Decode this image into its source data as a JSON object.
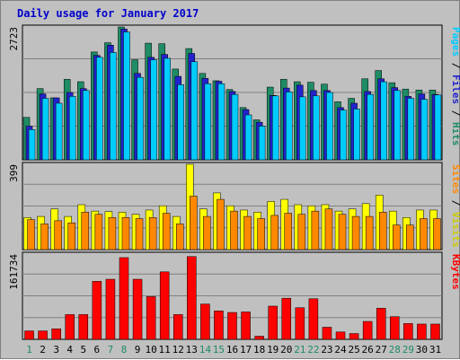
{
  "chart_data": [
    {
      "type": "bar",
      "title": "Daily usage for January 2017",
      "categories": [
        "1",
        "2",
        "3",
        "4",
        "5",
        "6",
        "7",
        "8",
        "9",
        "10",
        "11",
        "12",
        "13",
        "14",
        "15",
        "16",
        "17",
        "18",
        "19",
        "20",
        "21",
        "22",
        "23",
        "24",
        "25",
        "26",
        "27",
        "28",
        "29",
        "30",
        "31"
      ],
      "weekend_days": [
        "1",
        "7",
        "8",
        "14",
        "15",
        "21",
        "22",
        "28",
        "29"
      ],
      "ymax_label": "2723",
      "ylim": [
        0,
        2723
      ],
      "series": [
        {
          "name": "Hits",
          "color": "#1e8c64",
          "values": [
            870,
            1460,
            1270,
            1650,
            1600,
            2210,
            2400,
            2723,
            2050,
            2390,
            2380,
            1860,
            2280,
            1770,
            1620,
            1440,
            1070,
            820,
            1490,
            1650,
            1600,
            1590,
            1550,
            1190,
            1260,
            1660,
            1830,
            1580,
            1450,
            1430,
            1430
          ]
        },
        {
          "name": "Files",
          "color": "#2222cc",
          "values": [
            690,
            1350,
            1270,
            1380,
            1460,
            2140,
            2350,
            2680,
            1770,
            2100,
            2160,
            1710,
            2180,
            1670,
            1610,
            1400,
            1030,
            770,
            1320,
            1470,
            1530,
            1420,
            1420,
            1070,
            1160,
            1400,
            1660,
            1480,
            1300,
            1350,
            1340
          ]
        },
        {
          "name": "Pages",
          "color": "#00ccff",
          "values": [
            620,
            1260,
            1160,
            1300,
            1420,
            2100,
            2200,
            2620,
            1690,
            2050,
            2080,
            1540,
            2010,
            1560,
            1560,
            1340,
            920,
            690,
            1310,
            1390,
            1290,
            1310,
            1380,
            1020,
            1040,
            1340,
            1600,
            1420,
            1260,
            1240,
            1330
          ]
        }
      ],
      "right_label": [
        {
          "text": "Pages",
          "color": "#00ccff"
        },
        {
          "text": " / ",
          "color": "#000000"
        },
        {
          "text": "Files",
          "color": "#2222cc"
        },
        {
          "text": " / ",
          "color": "#000000"
        },
        {
          "text": "Hits",
          "color": "#1e8c64"
        }
      ]
    },
    {
      "type": "bar",
      "ymax_label": "399",
      "ylim": [
        0,
        399
      ],
      "series": [
        {
          "name": "Visits",
          "color": "#ffff00",
          "values": [
            150,
            155,
            190,
            155,
            210,
            180,
            178,
            175,
            165,
            185,
            205,
            155,
            399,
            190,
            265,
            205,
            185,
            175,
            225,
            235,
            210,
            205,
            210,
            180,
            190,
            215,
            255,
            180,
            150,
            185,
            185
          ]
        },
        {
          "name": "Sites",
          "color": "#ff8800",
          "values": [
            140,
            120,
            135,
            125,
            175,
            165,
            150,
            150,
            145,
            150,
            170,
            120,
            250,
            155,
            235,
            180,
            155,
            145,
            160,
            170,
            165,
            180,
            190,
            165,
            155,
            155,
            175,
            115,
            115,
            145,
            145
          ]
        }
      ],
      "right_label": [
        {
          "text": "Sites",
          "color": "#ff8800"
        },
        {
          "text": " / ",
          "color": "#000000"
        },
        {
          "text": "Visits",
          "color": "#cccc00"
        }
      ]
    },
    {
      "type": "bar",
      "ymax_label": "161734",
      "ylim": [
        0,
        161734
      ],
      "series": [
        {
          "name": "KBytes",
          "color": "#ff0000",
          "values": [
            16000,
            16000,
            20000,
            47000,
            47000,
            110000,
            114000,
            155000,
            114000,
            81000,
            128000,
            47000,
            157000,
            67000,
            54000,
            51000,
            52000,
            6000,
            63000,
            78000,
            60000,
            77000,
            23000,
            14000,
            11000,
            34000,
            59000,
            43000,
            30000,
            29000,
            29000
          ]
        }
      ],
      "right_label": [
        {
          "text": "KBytes",
          "color": "#ff0000"
        }
      ]
    }
  ]
}
